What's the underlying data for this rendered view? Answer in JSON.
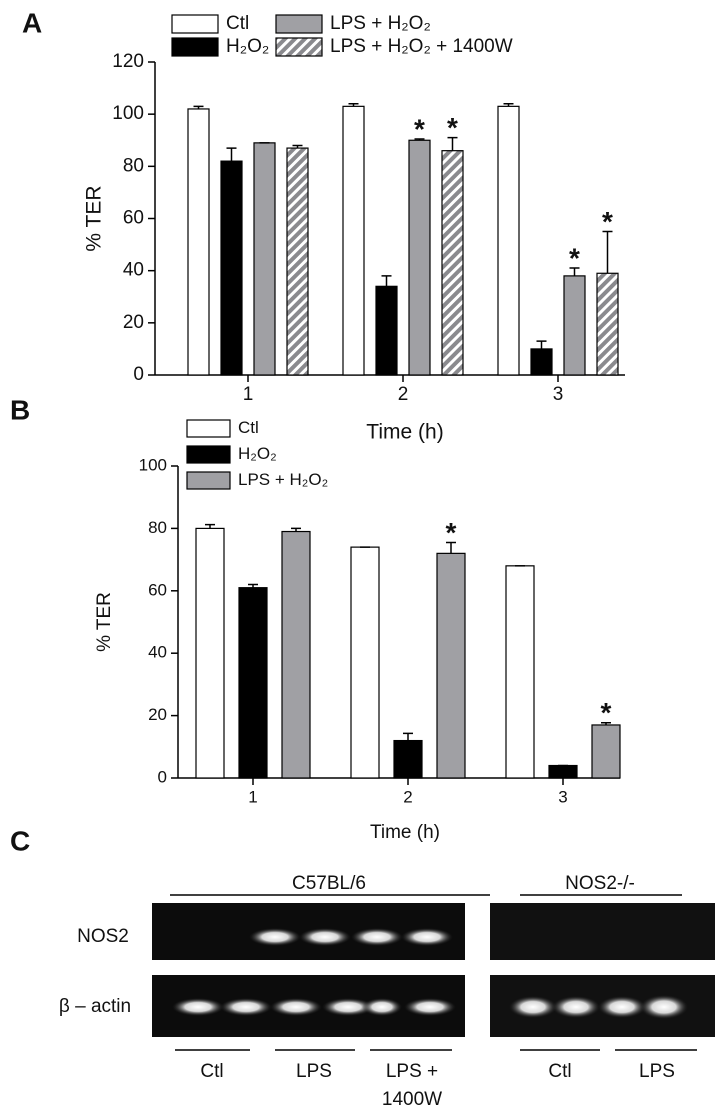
{
  "panels": [
    "A",
    "B",
    "C"
  ],
  "chart_data": [
    {
      "type": "bar",
      "x_label": "Time (h)",
      "y_label": "% TER",
      "categories": [
        "1",
        "2",
        "3"
      ],
      "ylim": [
        0,
        120
      ],
      "yticks": [
        0,
        20,
        40,
        60,
        80,
        100,
        120
      ],
      "series": [
        {
          "name": "Ctl",
          "color": "#ffffff",
          "values": [
            102,
            103,
            103
          ],
          "errors": [
            1,
            1,
            1
          ]
        },
        {
          "name": "H₂O₂",
          "color": "#000000",
          "values": [
            82,
            34,
            10
          ],
          "errors": [
            5,
            4,
            3
          ]
        },
        {
          "name": "LPS + H₂O₂",
          "color": "#a0a0a4",
          "values": [
            89,
            90,
            38
          ],
          "errors": [
            0,
            0.5,
            3
          ],
          "significance": [
            null,
            "*",
            "*"
          ]
        },
        {
          "name": "LPS + H₂O₂ + 1400W",
          "color": "#8a8a8e",
          "hatch": true,
          "values": [
            87,
            86,
            39
          ],
          "errors": [
            1,
            5,
            16
          ],
          "significance": [
            null,
            "*",
            "*"
          ]
        }
      ]
    },
    {
      "type": "bar",
      "x_label": "Time (h)",
      "y_label": "% TER",
      "categories": [
        "1",
        "2",
        "3"
      ],
      "ylim": [
        0,
        100
      ],
      "yticks": [
        0,
        20,
        40,
        60,
        80,
        100
      ],
      "series": [
        {
          "name": "Ctl",
          "color": "#ffffff",
          "values": [
            80,
            74,
            68
          ],
          "errors": [
            1.2,
            0,
            0
          ]
        },
        {
          "name": "H₂O₂",
          "color": "#000000",
          "values": [
            61,
            12,
            4
          ],
          "errors": [
            1,
            2.3,
            0
          ]
        },
        {
          "name": "LPS + H₂O₂",
          "color": "#a0a0a4",
          "values": [
            79,
            72,
            17
          ],
          "errors": [
            1,
            3.5,
            0.7
          ],
          "significance": [
            null,
            "*",
            "*"
          ]
        }
      ]
    }
  ],
  "gel": {
    "groups": [
      "C57BL/6",
      "NOS2-/-"
    ],
    "rows": [
      "NOS2",
      "β – actin"
    ],
    "lanes_left": [
      "Ctl",
      "LPS",
      "LPS +",
      "1400W"
    ],
    "lanes_right": [
      "Ctl",
      "LPS"
    ]
  }
}
